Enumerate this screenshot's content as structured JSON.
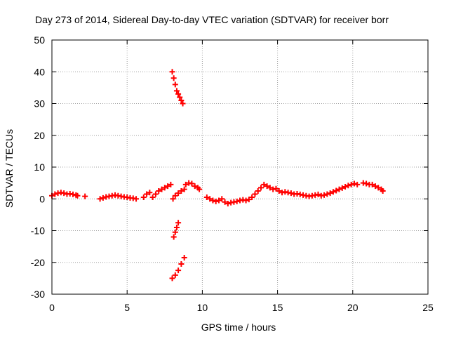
{
  "chart_data": {
    "type": "scatter",
    "title": "Day 273 of 2014, Sidereal Day-to-day VTEC variation (SDTVAR) for receiver borr",
    "xlabel": "GPS time / hours",
    "ylabel": "SDTVAR / TECUs",
    "xlim": [
      0,
      25
    ],
    "ylim": [
      -30,
      50
    ],
    "xticks": [
      0,
      5,
      10,
      15,
      20,
      25
    ],
    "yticks": [
      -30,
      -20,
      -10,
      0,
      10,
      20,
      30,
      40,
      50
    ],
    "xtick_labels": [
      "0",
      "5",
      "10",
      "15",
      "20",
      "25"
    ],
    "ytick_labels": [
      "-30",
      "-20",
      "-10",
      "0",
      "10",
      "20",
      "30",
      "40",
      "50"
    ],
    "grid": true,
    "marker": "+",
    "series": [
      {
        "name": "SDTVAR",
        "color": "#ff0000",
        "points": [
          [
            0.0,
            1.0
          ],
          [
            0.2,
            1.5
          ],
          [
            0.4,
            1.8
          ],
          [
            0.6,
            2.0
          ],
          [
            0.8,
            1.8
          ],
          [
            1.0,
            1.5
          ],
          [
            1.2,
            1.6
          ],
          [
            1.4,
            1.4
          ],
          [
            1.6,
            1.2
          ],
          [
            1.7,
            1.0
          ],
          [
            2.2,
            0.8
          ],
          [
            3.2,
            0.0
          ],
          [
            3.4,
            0.3
          ],
          [
            3.6,
            0.6
          ],
          [
            3.8,
            0.8
          ],
          [
            4.0,
            1.0
          ],
          [
            4.2,
            1.2
          ],
          [
            4.4,
            1.0
          ],
          [
            4.6,
            0.8
          ],
          [
            4.8,
            0.6
          ],
          [
            5.0,
            0.5
          ],
          [
            5.2,
            0.3
          ],
          [
            5.4,
            0.2
          ],
          [
            5.6,
            0.0
          ],
          [
            6.1,
            0.5
          ],
          [
            6.3,
            1.5
          ],
          [
            6.5,
            2.0
          ],
          [
            6.7,
            0.5
          ],
          [
            6.9,
            1.5
          ],
          [
            7.1,
            2.5
          ],
          [
            7.3,
            3.0
          ],
          [
            7.5,
            3.5
          ],
          [
            7.7,
            4.0
          ],
          [
            7.9,
            4.5
          ],
          [
            8.0,
            40.0
          ],
          [
            8.1,
            38.0
          ],
          [
            8.2,
            36.0
          ],
          [
            8.3,
            34.0
          ],
          [
            8.4,
            33.0
          ],
          [
            8.5,
            32.0
          ],
          [
            8.6,
            31.0
          ],
          [
            8.7,
            30.0
          ],
          [
            8.05,
            0.0
          ],
          [
            8.2,
            1.0
          ],
          [
            8.4,
            1.8
          ],
          [
            8.6,
            2.5
          ],
          [
            8.8,
            3.0
          ],
          [
            8.9,
            4.5
          ],
          [
            9.1,
            5.0
          ],
          [
            9.3,
            4.8
          ],
          [
            9.5,
            4.0
          ],
          [
            9.7,
            3.5
          ],
          [
            9.8,
            3.0
          ],
          [
            8.1,
            -12.0
          ],
          [
            8.2,
            -10.5
          ],
          [
            8.3,
            -9.0
          ],
          [
            8.4,
            -7.5
          ],
          [
            8.0,
            -25.0
          ],
          [
            8.2,
            -24.0
          ],
          [
            8.4,
            -22.5
          ],
          [
            8.6,
            -20.5
          ],
          [
            8.8,
            -18.5
          ],
          [
            10.3,
            0.5
          ],
          [
            10.5,
            0.0
          ],
          [
            10.7,
            -0.5
          ],
          [
            10.9,
            -0.8
          ],
          [
            11.1,
            -0.5
          ],
          [
            11.3,
            0.0
          ],
          [
            11.5,
            -1.0
          ],
          [
            11.7,
            -1.5
          ],
          [
            11.9,
            -1.2
          ],
          [
            12.1,
            -1.0
          ],
          [
            12.3,
            -0.8
          ],
          [
            12.5,
            -0.5
          ],
          [
            12.7,
            -0.3
          ],
          [
            12.9,
            -0.5
          ],
          [
            13.1,
            -0.2
          ],
          [
            13.3,
            0.5
          ],
          [
            13.5,
            1.5
          ],
          [
            13.7,
            2.5
          ],
          [
            13.9,
            3.5
          ],
          [
            14.1,
            4.5
          ],
          [
            14.3,
            4.0
          ],
          [
            14.5,
            3.5
          ],
          [
            14.7,
            3.0
          ],
          [
            14.9,
            3.2
          ],
          [
            15.1,
            2.5
          ],
          [
            15.3,
            2.0
          ],
          [
            15.5,
            2.2
          ],
          [
            15.7,
            2.0
          ],
          [
            15.9,
            1.8
          ],
          [
            16.1,
            1.5
          ],
          [
            16.3,
            1.6
          ],
          [
            16.5,
            1.4
          ],
          [
            16.7,
            1.2
          ],
          [
            16.9,
            1.0
          ],
          [
            17.1,
            0.8
          ],
          [
            17.3,
            1.0
          ],
          [
            17.5,
            1.2
          ],
          [
            17.7,
            1.4
          ],
          [
            17.9,
            1.0
          ],
          [
            18.1,
            1.2
          ],
          [
            18.3,
            1.5
          ],
          [
            18.5,
            1.8
          ],
          [
            18.7,
            2.2
          ],
          [
            18.9,
            2.6
          ],
          [
            19.1,
            3.0
          ],
          [
            19.3,
            3.4
          ],
          [
            19.5,
            3.8
          ],
          [
            19.7,
            4.2
          ],
          [
            19.9,
            4.5
          ],
          [
            20.1,
            4.8
          ],
          [
            20.3,
            4.5
          ],
          [
            20.7,
            5.0
          ],
          [
            20.9,
            4.8
          ],
          [
            21.1,
            4.5
          ],
          [
            21.3,
            4.5
          ],
          [
            21.5,
            4.0
          ],
          [
            21.7,
            3.5
          ],
          [
            21.9,
            3.0
          ],
          [
            22.0,
            2.5
          ]
        ]
      }
    ]
  }
}
